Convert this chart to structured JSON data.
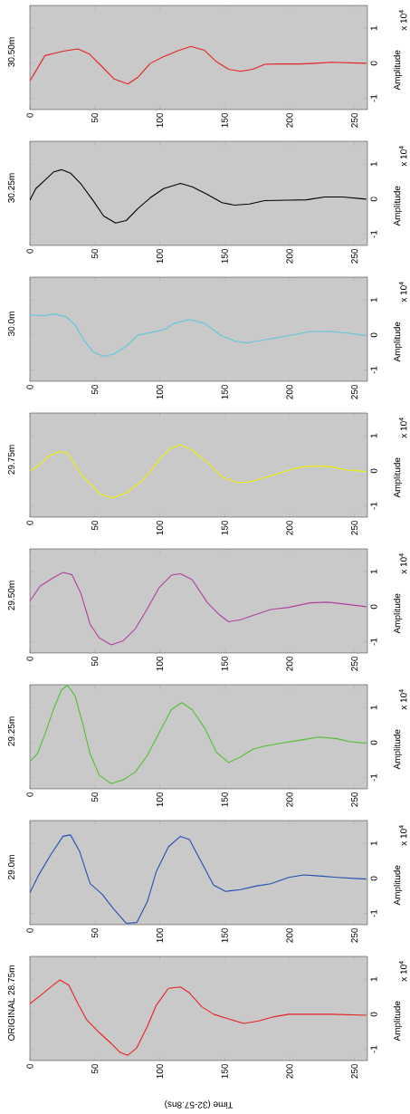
{
  "chart_data": [
    {
      "type": "line",
      "title": "30.50m",
      "ylabel": "Amplitude",
      "annotations": [
        "x 10$^{4}$"
      ],
      "xlim": [
        0,
        260
      ],
      "ylim": [
        -1.32,
        1.65
      ],
      "xticks": [
        0,
        50,
        100,
        150,
        200,
        250
      ],
      "yticks": [
        -1,
        0,
        1
      ],
      "series": [
        {
          "color": "#e82020",
          "x": [
            0,
            4.6,
            11.6,
            18.5,
            26.7,
            37,
            46,
            55.7,
            65,
            75.4,
            83.5,
            92.8,
            102,
            113.6,
            124,
            134.5,
            143.8,
            153,
            162.3,
            171.6,
            180.9,
            190,
            208.7,
            220,
            232,
            259
          ],
          "values": [
            -0.5,
            -0.22,
            0.22,
            0.28,
            0.35,
            0.41,
            0.26,
            -0.1,
            -0.45,
            -0.59,
            -0.39,
            0,
            0.17,
            0.35,
            0.48,
            0.37,
            0.04,
            -0.17,
            -0.23,
            -0.17,
            -0.03,
            -0.02,
            -0.02,
            0,
            0.03,
            0
          ]
        }
      ]
    },
    {
      "type": "line",
      "title": "30.25m",
      "ylabel": "Amplitude",
      "annotations": [
        "x 10$^{4}$"
      ],
      "xlim": [
        0,
        260
      ],
      "ylim": [
        -1.32,
        1.65
      ],
      "xticks": [
        0,
        50,
        100,
        150,
        200,
        250
      ],
      "yticks": [
        -1,
        0,
        1
      ],
      "series": [
        {
          "color": "#000000",
          "x": [
            0,
            4.6,
            11.6,
            18.5,
            24.4,
            31.3,
            39.4,
            48.7,
            56.8,
            66,
            74.2,
            83.5,
            92.8,
            103,
            116,
            125,
            136.8,
            148,
            157.7,
            169,
            180.9,
            199.4,
            213,
            227,
            241,
            259
          ],
          "values": [
            -0.03,
            0.3,
            0.54,
            0.78,
            0.84,
            0.74,
            0.43,
            -0.04,
            -0.48,
            -0.68,
            -0.61,
            -0.26,
            0.04,
            0.3,
            0.45,
            0.35,
            0.13,
            -0.1,
            -0.17,
            -0.14,
            -0.04,
            -0.03,
            -0.02,
            0.06,
            0.06,
            0
          ]
        }
      ]
    },
    {
      "type": "line",
      "title": "30.0m",
      "ylabel": "Amplitude",
      "annotations": [
        "x 10$^{4}$"
      ],
      "xlim": [
        0,
        260
      ],
      "ylim": [
        -1.32,
        1.65
      ],
      "xticks": [
        0,
        50,
        100,
        150,
        200,
        250
      ],
      "yticks": [
        -1,
        0,
        1
      ],
      "series": [
        {
          "color": "#5bc8dc",
          "x": [
            0,
            11.6,
            18.5,
            27.8,
            34.8,
            41.7,
            48.7,
            56.8,
            65,
            74.2,
            83.5,
            92.8,
            104,
            111,
            122.9,
            134.5,
            148,
            157.7,
            167,
            178.6,
            192.5,
            204,
            215.7,
            232,
            246,
            259
          ],
          "values": [
            0.57,
            0.55,
            0.6,
            0.52,
            0.29,
            -0.15,
            -0.48,
            -0.61,
            -0.54,
            -0.32,
            0,
            0.07,
            0.16,
            0.33,
            0.44,
            0.33,
            -0.03,
            -0.17,
            -0.23,
            -0.15,
            -0.06,
            0.01,
            0.1,
            0.1,
            0.05,
            -0.02
          ]
        }
      ]
    },
    {
      "type": "line",
      "title": "29.75m",
      "ylabel": "Amplitude",
      "annotations": [
        "x 10$^{4}$"
      ],
      "xlim": [
        0,
        260
      ],
      "ylim": [
        -1.32,
        1.65
      ],
      "xticks": [
        0,
        50,
        100,
        150,
        200,
        250
      ],
      "yticks": [
        -1,
        0,
        1
      ],
      "series": [
        {
          "color": "#f0f000",
          "x": [
            0,
            7,
            15,
            23,
            29,
            39.4,
            46.4,
            54.5,
            63.8,
            74.2,
            85.8,
            92.8,
            99.7,
            107.8,
            116,
            125,
            136.8,
            148,
            160,
            169,
            180.9,
            192.5,
            204,
            215.7,
            229.6,
            243.5,
            259
          ],
          "values": [
            0,
            0.16,
            0.43,
            0.55,
            0.5,
            -0.1,
            -0.37,
            -0.67,
            -0.78,
            -0.63,
            -0.3,
            -0.02,
            0.33,
            0.63,
            0.74,
            0.59,
            0.24,
            -0.17,
            -0.34,
            -0.32,
            -0.19,
            -0.06,
            0.07,
            0.14,
            0.13,
            0.03,
            -0.02
          ]
        }
      ]
    },
    {
      "type": "line",
      "title": "29.50m",
      "ylabel": "Amplitude",
      "annotations": [
        "x 10$^{4}$"
      ],
      "xlim": [
        0,
        260
      ],
      "ylim": [
        -1.32,
        1.65
      ],
      "xticks": [
        0,
        50,
        100,
        150,
        200,
        250
      ],
      "yticks": [
        -1,
        0,
        1
      ],
      "series": [
        {
          "color": "#b040a0",
          "x": [
            0,
            8,
            17.4,
            25.5,
            32.5,
            39.4,
            46.4,
            53.4,
            62.6,
            71.9,
            81.2,
            90.4,
            99.7,
            109,
            116,
            125,
            136.8,
            146,
            153,
            162.3,
            174,
            185.5,
            199.4,
            215.7,
            229.6,
            243.5,
            259
          ],
          "values": [
            0.16,
            0.59,
            0.81,
            0.98,
            0.91,
            0.37,
            -0.5,
            -0.89,
            -1.09,
            -0.97,
            -0.63,
            -0.06,
            0.55,
            0.9,
            0.94,
            0.77,
            0.11,
            -0.23,
            -0.43,
            -0.37,
            -0.22,
            -0.08,
            -0.02,
            0.11,
            0.13,
            0.07,
            0
          ]
        }
      ]
    },
    {
      "type": "line",
      "title": "29.25m",
      "ylabel": "Amplitude",
      "annotations": [
        "x 10$^{4}$"
      ],
      "xlim": [
        0,
        260
      ],
      "ylim": [
        -1.32,
        1.65
      ],
      "xticks": [
        0,
        50,
        100,
        150,
        200,
        250
      ],
      "yticks": [
        -1,
        0,
        1
      ],
      "series": [
        {
          "color": "#50c030",
          "x": [
            0,
            5.8,
            11.6,
            18.5,
            24.4,
            29,
            34.8,
            40.6,
            46.4,
            53.4,
            62.6,
            71.9,
            81.2,
            90.4,
            99.7,
            109,
            117,
            125,
            134.5,
            143.8,
            153,
            162.3,
            171.6,
            180.9,
            194.8,
            208.7,
            222.6,
            236.5,
            245.8,
            259
          ],
          "values": [
            -0.54,
            -0.32,
            0.24,
            0.98,
            1.5,
            1.63,
            1.33,
            0.55,
            -0.32,
            -0.93,
            -1.17,
            -1.06,
            -0.84,
            -0.37,
            0.29,
            0.94,
            1.14,
            0.94,
            0.42,
            -0.28,
            -0.57,
            -0.41,
            -0.19,
            -0.1,
            -0.01,
            0.07,
            0.16,
            0.11,
            0.03,
            -0.02
          ]
        }
      ]
    },
    {
      "type": "line",
      "title": "29.0m",
      "ylabel": "Amplitude",
      "annotations": [
        "x 10$^{4}$"
      ],
      "xlim": [
        0,
        260
      ],
      "ylim": [
        -1.32,
        1.65
      ],
      "xticks": [
        0,
        50,
        100,
        150,
        200,
        250
      ],
      "yticks": [
        -1,
        0,
        1
      ],
      "series": [
        {
          "color": "#2050b0",
          "x": [
            0,
            7,
            16.2,
            25.5,
            31.3,
            38.3,
            46.4,
            55.7,
            63.8,
            74.2,
            82.3,
            90.4,
            97.4,
            106.7,
            116,
            122.9,
            132.2,
            141.5,
            150.7,
            162.3,
            174,
            185.5,
            199.4,
            211,
            222.6,
            236.5,
            259
          ],
          "values": [
            -0.41,
            0.11,
            0.68,
            1.2,
            1.24,
            0.77,
            -0.15,
            -0.45,
            -0.84,
            -1.28,
            -1.26,
            -0.67,
            0.2,
            0.9,
            1.2,
            1.11,
            0.46,
            -0.19,
            -0.37,
            -0.32,
            -0.22,
            -0.15,
            0.03,
            0.1,
            0.07,
            0.03,
            -0.02
          ]
        }
      ]
    },
    {
      "type": "line",
      "title": "ORIGINAL 28.75m",
      "xlabel": "Time (32-57.8ns)",
      "ylabel": "Amplitude",
      "annotations": [
        "x 10$^{4}$"
      ],
      "xlim": [
        0,
        260
      ],
      "ylim": [
        -1.32,
        1.65
      ],
      "xticks": [
        0,
        50,
        100,
        150,
        200,
        250
      ],
      "yticks": [
        -1,
        0,
        1
      ],
      "series": [
        {
          "color": "#e82020",
          "x": [
            0,
            9.3,
            16.2,
            23.2,
            30,
            37,
            44,
            53.4,
            62.6,
            69.6,
            75.4,
            82.3,
            90.4,
            97.4,
            106.7,
            116,
            122.9,
            132.2,
            141.5,
            153,
            164.7,
            176.3,
            188,
            199.4,
            232,
            259
          ],
          "values": [
            0.3,
            0.57,
            0.78,
            0.98,
            0.83,
            0.3,
            -0.17,
            -0.52,
            -0.83,
            -1.09,
            -1.17,
            -0.96,
            -0.35,
            0.26,
            0.74,
            0.78,
            0.61,
            0.22,
            0,
            -0.13,
            -0.26,
            -0.19,
            -0.07,
            0,
            0,
            -0.03
          ]
        }
      ]
    }
  ]
}
